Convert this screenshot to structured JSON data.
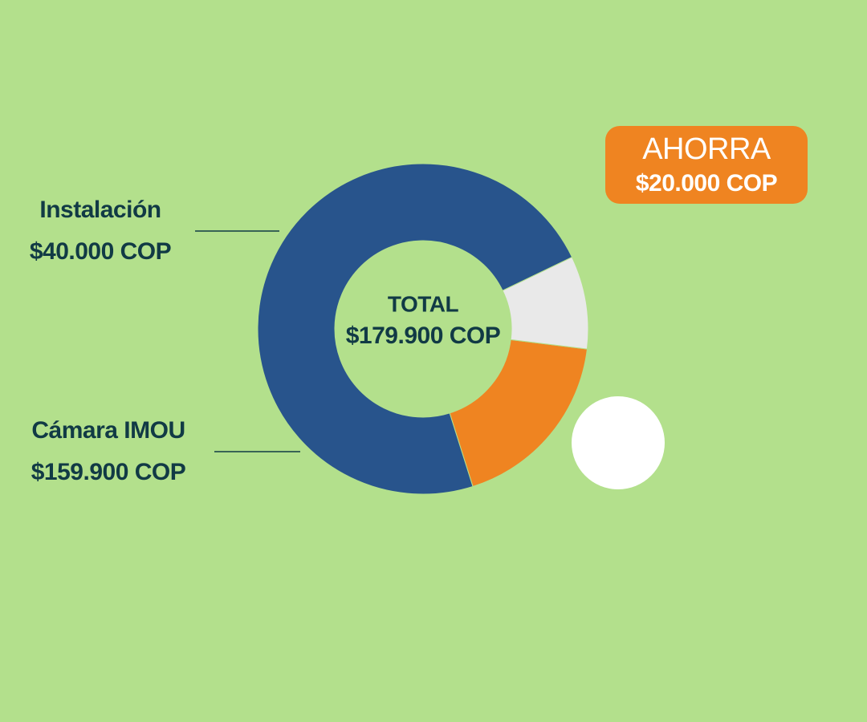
{
  "chart_data": {
    "type": "donut",
    "categories": [
      "Instalación",
      "Cámara IMOU",
      "AHORRA"
    ],
    "values": [
      40000,
      159900,
      20000
    ],
    "value_labels": [
      "$40.000 COP",
      "$159.900 COP",
      "$20.000 COP"
    ],
    "colors": [
      "#ef8421",
      "#28548c",
      "#e9e9e9"
    ],
    "center_title": "TOTAL",
    "total": {
      "value": 179900,
      "label": "$179.900 COP"
    }
  }
}
